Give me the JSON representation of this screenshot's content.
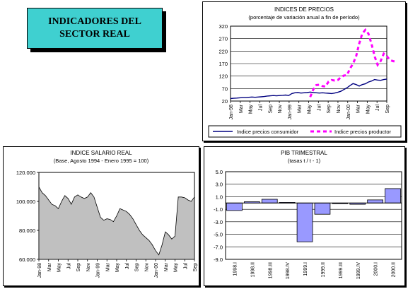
{
  "header": {
    "line1": "INDICADORES DEL",
    "line2": "SECTOR REAL"
  },
  "colors": {
    "title_bg": "#3fd0d0",
    "consumer_line": "#000080",
    "producer_line": "#ff00ff",
    "wage_area": "#c0c0c0",
    "pib_bar": "#9999ff"
  },
  "chart_data": [
    {
      "id": "precios",
      "type": "line",
      "title": "INDICES DE PRECIOS",
      "subtitle": "(porcentaje de variación anual a fin de período)",
      "ylim": [
        20,
        320
      ],
      "yticks": [
        "320",
        "270",
        "220",
        "170",
        "120",
        "70",
        "20"
      ],
      "xticks": [
        "Jan-98",
        "Mar",
        "May",
        "Jul",
        "Sep",
        "Nov",
        "Jan-99",
        "Mar",
        "May",
        "Jul",
        "Sep",
        "Nov",
        "Jan-00",
        "Mar",
        "May",
        "Jul",
        "Sep"
      ],
      "grid": true,
      "legend_position": "bottom",
      "series": [
        {
          "name": "Indice precios consumidor",
          "style": "solid",
          "values": [
            30,
            31,
            32,
            33,
            34,
            34,
            35,
            36,
            35,
            36,
            37,
            38,
            40,
            41,
            42,
            41,
            42,
            43,
            44,
            42,
            50,
            53,
            54,
            52,
            53,
            54,
            56,
            54,
            53,
            52,
            53,
            52,
            51,
            50,
            52,
            55,
            59,
            66,
            73,
            82,
            90,
            86,
            80,
            86,
            89,
            96,
            100,
            106,
            104,
            103,
            106,
            108
          ]
        },
        {
          "name": "Indice precios productor",
          "style": "dashed",
          "start_index": 26,
          "values": [
            36,
            66,
            84,
            85,
            80,
            78,
            98,
            104,
            102,
            104,
            115,
            122,
            124,
            150,
            170,
            200,
            250,
            290,
            305,
            290,
            250,
            200,
            165,
            180,
            210,
            200,
            185,
            180,
            178
          ]
        }
      ]
    },
    {
      "id": "salario",
      "type": "area",
      "title": "INDICE SALARIO REAL",
      "subtitle": "(Base, Agosto 1994 - Enero 1995 = 100)",
      "ylim": [
        60000,
        120000
      ],
      "yticks": [
        "120.000",
        "100.000",
        "80.000",
        "60.000"
      ],
      "xticks": [
        "Jan-98",
        "Mar",
        "May",
        "Jul",
        "Sep",
        "Nov",
        "Jan-99",
        "Mar",
        "May",
        "Jul",
        "Sep",
        "Nov",
        "Jan-00",
        "Mar",
        "May",
        "Jul",
        "Sep"
      ],
      "values": [
        110000,
        106000,
        104000,
        101000,
        98000,
        97000,
        95000,
        100000,
        104000,
        102000,
        98000,
        103000,
        104500,
        103000,
        102000,
        103000,
        106000,
        103000,
        96000,
        89000,
        87000,
        88000,
        87500,
        86000,
        90000,
        95000,
        94000,
        93000,
        91000,
        88000,
        84000,
        80000,
        77000,
        75000,
        73000,
        70000,
        66000,
        63000,
        70000,
        79000,
        77000,
        74000,
        76000,
        103000,
        103000,
        102500,
        101000,
        100000,
        103000
      ]
    },
    {
      "id": "pib",
      "type": "bar",
      "title": "PIB TRIMESTRAL",
      "subtitle": "(tasas t / t - 1)",
      "ylim": [
        -9.0,
        5.0
      ],
      "yticks": [
        "5.0",
        "3.0",
        "1.0",
        "-1.0",
        "-3.0",
        "-5.0",
        "-7.0",
        "-9.0"
      ],
      "categories": [
        "1998.I",
        "1998.II",
        "1998.III",
        "1998.IV",
        "1999.I",
        "1999.II",
        "1999.III",
        "1999.IV",
        "2000.I",
        "2000.II"
      ],
      "values": [
        -1.2,
        0.2,
        0.6,
        0.1,
        -6.2,
        -1.8,
        0.0,
        -0.2,
        0.5,
        2.3
      ]
    }
  ]
}
